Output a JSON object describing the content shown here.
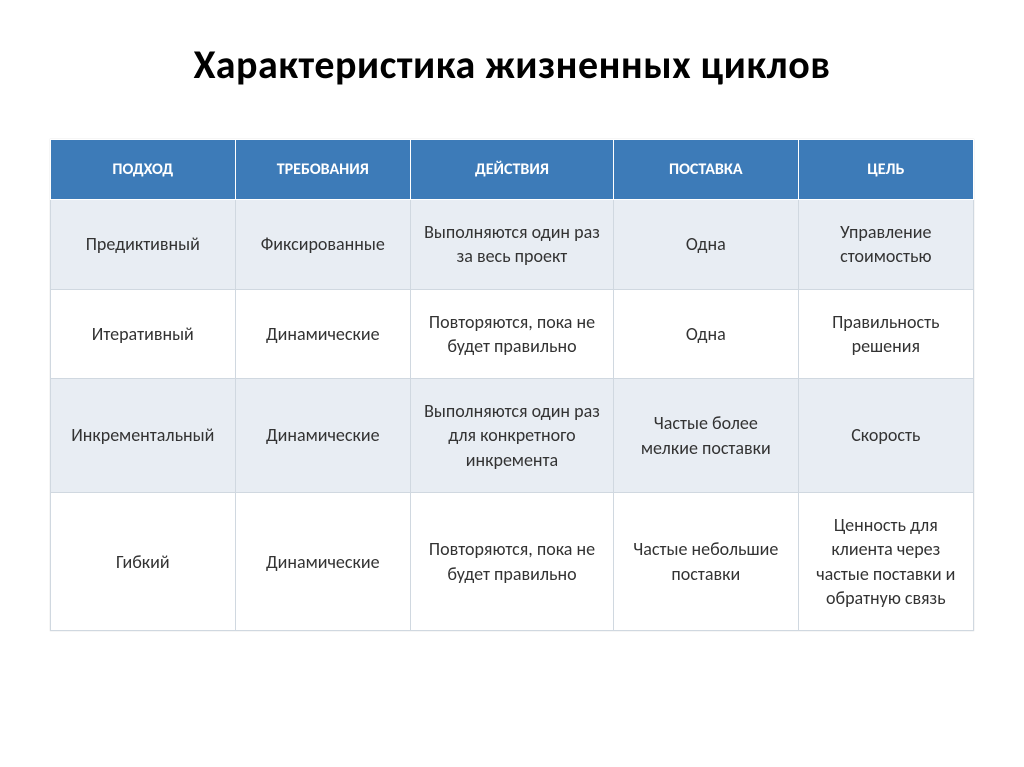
{
  "title": "Характеристика жизненных циклов",
  "table": {
    "type": "table",
    "header_bg_color": "#3d7bb8",
    "header_text_color": "#ffffff",
    "row_alt_bg_color": "#e8edf3",
    "row_normal_bg_color": "#ffffff",
    "border_color": "#d0d8e0",
    "title_fontsize": 40,
    "header_fontsize": 16,
    "cell_fontsize": 18,
    "columns": [
      {
        "label": "ПОДХОД",
        "width": "20%"
      },
      {
        "label": "ТРЕБОВАНИЯ",
        "width": "19%"
      },
      {
        "label": "ДЕЙСТВИЯ",
        "width": "22%"
      },
      {
        "label": "ПОСТАВКА",
        "width": "20%"
      },
      {
        "label": "ЦЕЛЬ",
        "width": "19%"
      }
    ],
    "rows": [
      [
        "Предиктивный",
        "Фиксированные",
        "Выполняются один раз за весь проект",
        "Одна",
        "Управление стоимостью"
      ],
      [
        "Итеративный",
        "Динамические",
        "Повторяются, пока не будет правильно",
        "Одна",
        "Правильность решения"
      ],
      [
        "Инкрементальный",
        "Динамические",
        "Выполняются один раз для конкретного инкремента",
        "Частые более мелкие поставки",
        "Скорость"
      ],
      [
        "Гибкий",
        "Динамические",
        "Повторяются, пока не будет правильно",
        "Частые небольшие поставки",
        "Ценность для клиента через частые поставки и обратную связь"
      ]
    ]
  }
}
